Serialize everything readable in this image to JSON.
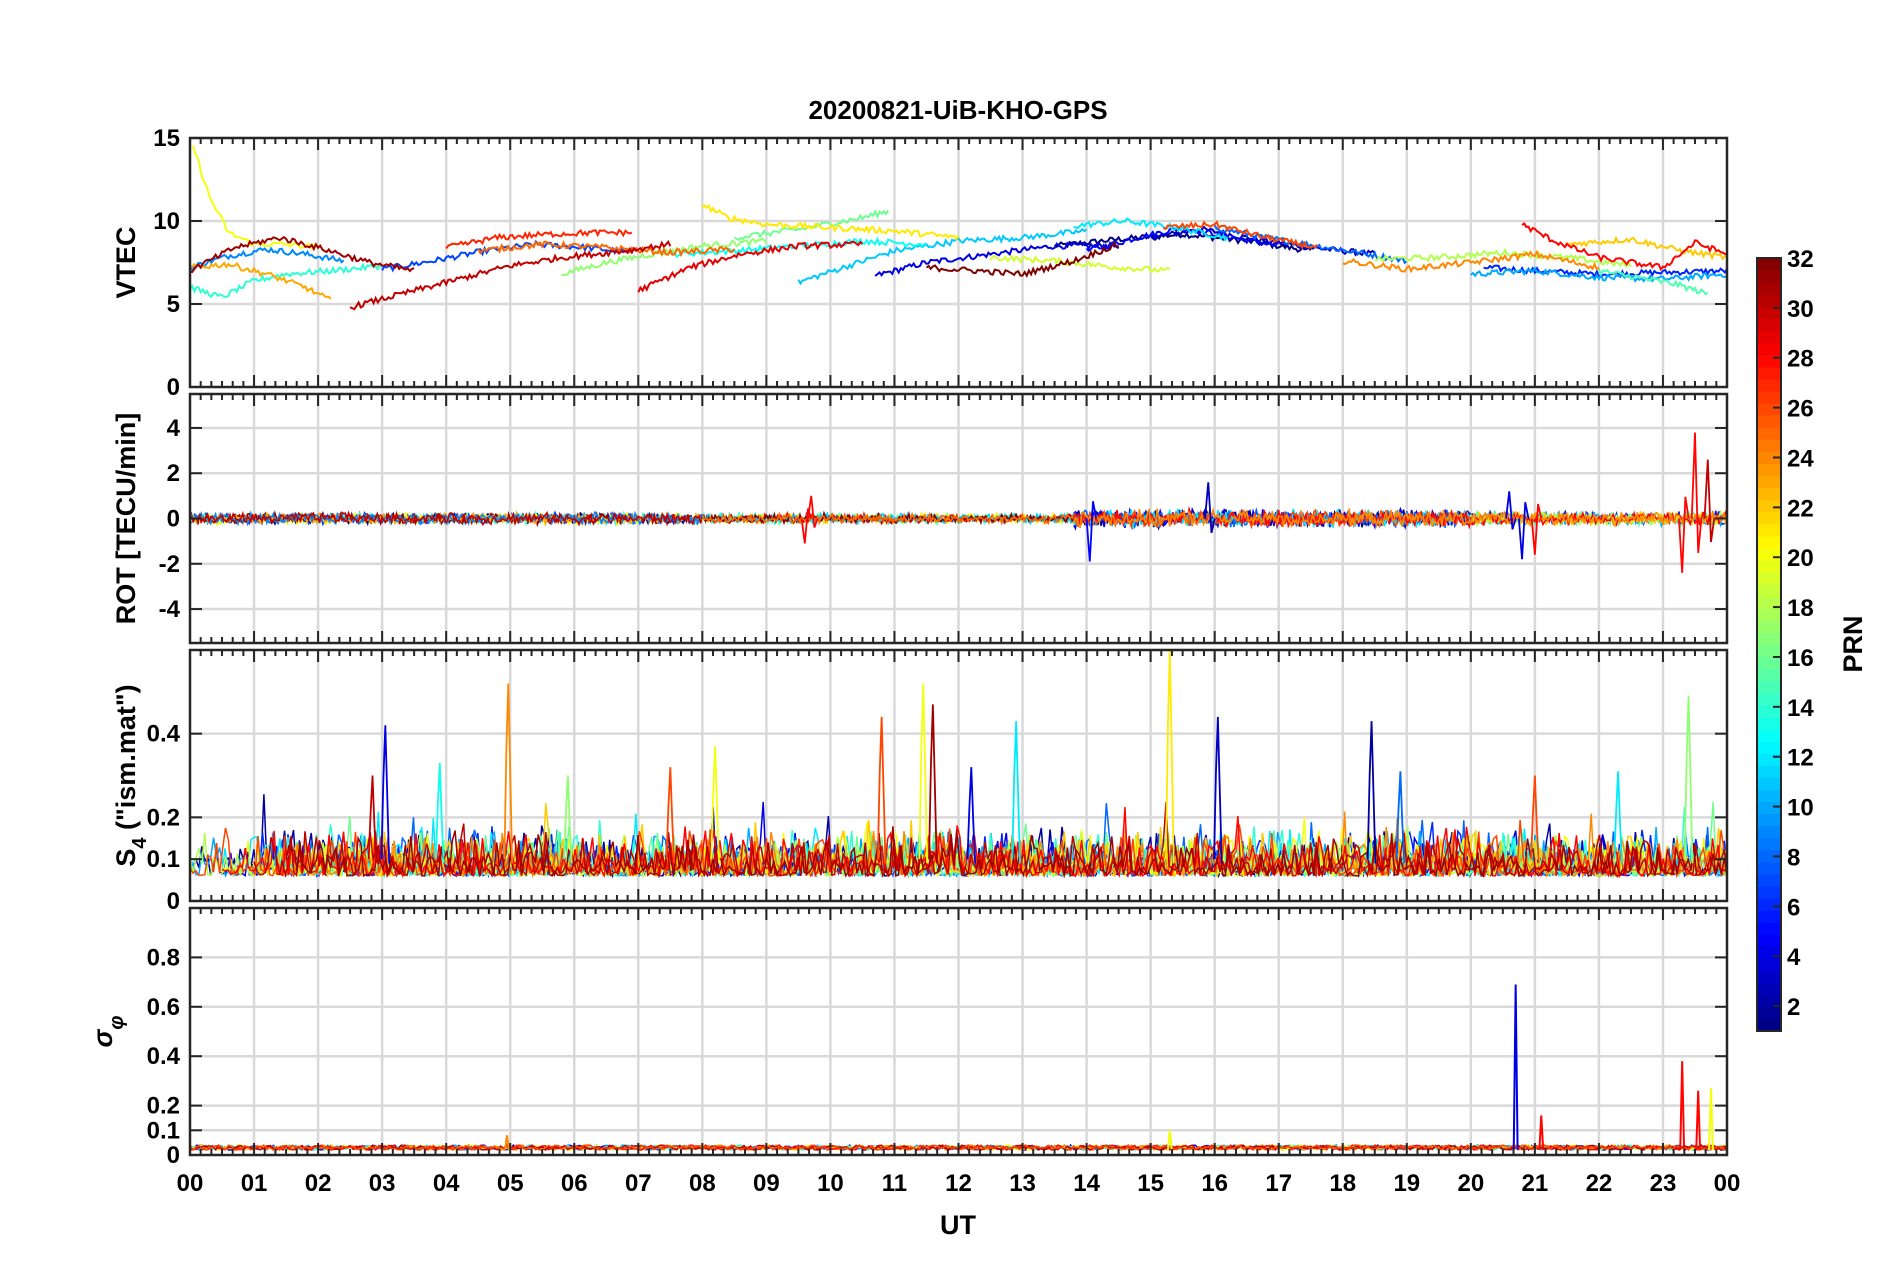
{
  "chart_data": {
    "type": "line",
    "title": "20200821-UiB-KHO-GPS",
    "xlabel": "UT",
    "x_ticks": [
      "00",
      "01",
      "02",
      "03",
      "04",
      "05",
      "06",
      "07",
      "08",
      "09",
      "10",
      "11",
      "12",
      "13",
      "14",
      "15",
      "16",
      "17",
      "18",
      "19",
      "20",
      "21",
      "22",
      "23",
      "00"
    ],
    "xlim": [
      0,
      24
    ],
    "grid": true,
    "panels": [
      {
        "id": "vtec",
        "ylabel": "VTEC",
        "ylim": [
          0,
          15
        ],
        "yticks": [
          0,
          5,
          10,
          15
        ],
        "ytick_labels": [
          "0",
          "5",
          "10",
          "15"
        ],
        "noise": 0.35,
        "series": [
          {
            "prn": 1,
            "x": [
              13.5,
              14.5,
              15.5,
              16.5,
              17.5
            ],
            "y": [
              8.5,
              8.9,
              9.2,
              8.8,
              8.2
            ]
          },
          {
            "prn": 3,
            "x": [
              15.0,
              15.8,
              16.5,
              17.5,
              18.5
            ],
            "y": [
              9.0,
              9.5,
              9.0,
              8.4,
              8.0
            ]
          },
          {
            "prn": 4,
            "x": [
              10.7,
              11.5,
              12.5,
              13.5,
              14.5
            ],
            "y": [
              6.7,
              7.5,
              8.0,
              8.5,
              8.5
            ]
          },
          {
            "prn": 5,
            "x": [
              14.0,
              14.8,
              15.5,
              16.3,
              17.0
            ],
            "y": [
              8.2,
              9.0,
              9.6,
              9.0,
              8.5
            ]
          },
          {
            "prn": 6,
            "x": [
              20.2,
              21.0,
              22.0,
              23.0,
              24.0
            ],
            "y": [
              7.2,
              7.0,
              6.8,
              6.9,
              7.0
            ]
          },
          {
            "prn": 7,
            "x": [
              3.0,
              3.8,
              4.6,
              5.4,
              6.2,
              6.9
            ],
            "y": [
              7.1,
              7.6,
              8.2,
              8.6,
              8.4,
              8.1
            ]
          },
          {
            "prn": 8,
            "x": [
              16.0,
              16.8,
              17.6,
              18.4,
              19.0
            ],
            "y": [
              9.6,
              9.0,
              8.5,
              8.0,
              7.6
            ]
          },
          {
            "prn": 9,
            "x": [
              0.0,
              0.6,
              1.2,
              1.8,
              2.4
            ],
            "y": [
              7.2,
              7.9,
              8.3,
              8.0,
              7.6
            ]
          },
          {
            "prn": 10,
            "x": [
              20.0,
              21.0,
              22.0,
              23.0,
              24.0
            ],
            "y": [
              6.8,
              7.0,
              6.6,
              6.5,
              6.8
            ]
          },
          {
            "prn": 11,
            "x": [
              9.5,
              10.2,
              11.0,
              12.0,
              13.0,
              14.0
            ],
            "y": [
              6.3,
              7.2,
              8.2,
              8.8,
              9.0,
              9.4
            ]
          },
          {
            "prn": 12,
            "x": [
              13.8,
              14.6,
              15.4,
              16.2
            ],
            "y": [
              9.7,
              10.0,
              9.6,
              9.0
            ]
          },
          {
            "prn": 13,
            "x": [
              7.5,
              8.5,
              9.5,
              10.5,
              11.5
            ],
            "y": [
              8.0,
              8.2,
              8.5,
              8.8,
              8.6
            ]
          },
          {
            "prn": 14,
            "x": [
              0.0,
              0.5,
              1.0,
              1.5,
              2.2,
              3.0
            ],
            "y": [
              6.0,
              5.4,
              6.4,
              6.8,
              7.0,
              7.3
            ]
          },
          {
            "prn": 15,
            "x": [
              22.0,
              22.6,
              23.2,
              23.7
            ],
            "y": [
              7.0,
              6.6,
              6.2,
              5.6
            ]
          },
          {
            "prn": 16,
            "x": [
              8.5,
              9.5,
              10.5,
              10.9
            ],
            "y": [
              9.0,
              9.5,
              10.2,
              10.6
            ]
          },
          {
            "prn": 17,
            "x": [
              5.8,
              6.5,
              7.2,
              8.0,
              9.0
            ],
            "y": [
              6.8,
              7.5,
              8.0,
              8.5,
              8.8
            ]
          },
          {
            "prn": 18,
            "x": [
              18.5,
              19.5,
              20.5,
              21.5,
              22.5
            ],
            "y": [
              7.7,
              7.8,
              8.1,
              7.8,
              7.3
            ]
          },
          {
            "prn": 19,
            "x": [
              12.5,
              13.5,
              14.5,
              15.3
            ],
            "y": [
              7.8,
              7.6,
              7.2,
              7.0
            ]
          },
          {
            "prn": 20,
            "x": [
              0.05,
              0.3,
              0.6,
              1.0,
              1.5,
              2.0
            ],
            "y": [
              14.5,
              11.5,
              9.3,
              8.6,
              8.6,
              8.4
            ]
          },
          {
            "prn": 21,
            "x": [
              8.0,
              8.4,
              9.0,
              10.0,
              11.0,
              12.0
            ],
            "y": [
              11.0,
              10.2,
              9.8,
              9.6,
              9.4,
              9.0
            ]
          },
          {
            "prn": 22,
            "x": [
              21.5,
              22.5,
              23.3,
              24.0
            ],
            "y": [
              8.6,
              8.9,
              8.2,
              7.8
            ]
          },
          {
            "prn": 23,
            "x": [
              0.0,
              0.6,
              1.2,
              1.8,
              2.2
            ],
            "y": [
              7.2,
              7.4,
              6.8,
              6.0,
              5.2
            ]
          },
          {
            "prn": 24,
            "x": [
              18.0,
              19.0,
              20.0,
              21.0,
              22.0
            ],
            "y": [
              7.6,
              7.1,
              7.5,
              8.0,
              7.2
            ]
          },
          {
            "prn": 25,
            "x": [
              4.5,
              5.5,
              6.5,
              7.5,
              8.5
            ],
            "y": [
              8.2,
              8.6,
              8.4,
              8.1,
              8.3
            ]
          },
          {
            "prn": 26,
            "x": [
              15.2,
              16.0,
              16.8,
              17.6
            ],
            "y": [
              9.6,
              9.8,
              9.0,
              8.4
            ]
          },
          {
            "prn": 27,
            "x": [
              4.0,
              4.8,
              5.6,
              6.3,
              6.9
            ],
            "y": [
              8.4,
              9.0,
              9.2,
              9.3,
              9.3
            ]
          },
          {
            "prn": 28,
            "x": [
              20.8,
              21.3,
              22.0,
              23.0,
              23.5,
              24.0
            ],
            "y": [
              9.8,
              8.8,
              7.8,
              7.2,
              8.7,
              8.0
            ]
          },
          {
            "prn": 29,
            "x": [
              7.0,
              7.8,
              8.6,
              9.5,
              10.5
            ],
            "y": [
              5.8,
              7.2,
              8.0,
              8.5,
              8.6
            ]
          },
          {
            "prn": 30,
            "x": [
              2.5,
              3.3,
              4.2,
              5.0,
              5.8,
              6.8,
              7.5
            ],
            "y": [
              4.8,
              5.6,
              6.5,
              7.3,
              7.8,
              8.2,
              8.6
            ]
          },
          {
            "prn": 31,
            "x": [
              0.0,
              0.7,
              1.4,
              2.1,
              2.8,
              3.5
            ],
            "y": [
              7.0,
              8.4,
              9.0,
              8.3,
              7.5,
              7.0
            ]
          },
          {
            "prn": 32,
            "x": [
              11.5,
              12.3,
              13.0,
              13.8,
              14.5
            ],
            "y": [
              7.2,
              7.0,
              6.8,
              7.6,
              8.6
            ]
          }
        ]
      },
      {
        "id": "rot",
        "ylabel": "ROT [TECU/min]",
        "ylim": [
          -5.5,
          5.5
        ],
        "yticks": [
          -4,
          -2,
          0,
          2,
          4
        ],
        "ytick_labels": [
          "-4",
          "-2",
          "0",
          "2",
          "4"
        ],
        "segments": [
          {
            "start": 0.0,
            "end": 8.0,
            "prns": [
              1,
              7,
              14,
              20,
              31,
              23,
              9,
              30
            ],
            "amp": 0.35
          },
          {
            "start": 8.0,
            "end": 14.0,
            "prns": [
              13,
              16,
              21,
              29,
              11,
              32,
              25
            ],
            "amp": 0.3
          },
          {
            "start": 13.8,
            "end": 20.0,
            "prns": [
              1,
              3,
              5,
              8,
              12,
              26,
              28,
              24
            ],
            "amp": 0.55
          },
          {
            "start": 20.0,
            "end": 24.0,
            "prns": [
              6,
              10,
              15,
              18,
              22,
              28,
              24
            ],
            "amp": 0.45
          }
        ],
        "spikes": [
          {
            "prn": 28,
            "x": 9.6,
            "y": -1.1
          },
          {
            "prn": 28,
            "x": 9.7,
            "y": 1.0
          },
          {
            "prn": 5,
            "x": 14.05,
            "y": -1.9
          },
          {
            "prn": 3,
            "x": 15.9,
            "y": 1.6
          },
          {
            "prn": 4,
            "x": 20.8,
            "y": -1.8
          },
          {
            "prn": 4,
            "x": 20.6,
            "y": 1.2
          },
          {
            "prn": 28,
            "x": 21.0,
            "y": -1.6
          },
          {
            "prn": 28,
            "x": 23.5,
            "y": 3.8
          },
          {
            "prn": 28,
            "x": 23.3,
            "y": -2.4
          },
          {
            "prn": 30,
            "x": 23.7,
            "y": 2.6
          }
        ]
      },
      {
        "id": "s4",
        "ylabel": "S4 (\"ism.mat\")",
        "ylim": [
          0,
          0.6
        ],
        "yticks": [
          0,
          0.1,
          0.2,
          0.4
        ],
        "ytick_labels": [
          "0",
          "0.1",
          "0.2",
          "0.4"
        ],
        "baseline": 0.07,
        "spikes": [
          {
            "prn": 4,
            "x": 3.05,
            "y": 0.42
          },
          {
            "prn": 30,
            "x": 2.85,
            "y": 0.3
          },
          {
            "prn": 24,
            "x": 4.97,
            "y": 0.52
          },
          {
            "prn": 13,
            "x": 3.9,
            "y": 0.33
          },
          {
            "prn": 17,
            "x": 5.9,
            "y": 0.3
          },
          {
            "prn": 26,
            "x": 7.5,
            "y": 0.32
          },
          {
            "prn": 20,
            "x": 8.2,
            "y": 0.37
          },
          {
            "prn": 26,
            "x": 10.8,
            "y": 0.44
          },
          {
            "prn": 20,
            "x": 11.45,
            "y": 0.52
          },
          {
            "prn": 31,
            "x": 11.6,
            "y": 0.47
          },
          {
            "prn": 12,
            "x": 12.9,
            "y": 0.43
          },
          {
            "prn": 4,
            "x": 12.2,
            "y": 0.32
          },
          {
            "prn": 21,
            "x": 15.3,
            "y": 0.6
          },
          {
            "prn": 3,
            "x": 16.05,
            "y": 0.44
          },
          {
            "prn": 2,
            "x": 18.45,
            "y": 0.43
          },
          {
            "prn": 8,
            "x": 18.9,
            "y": 0.31
          },
          {
            "prn": 26,
            "x": 21.0,
            "y": 0.3
          },
          {
            "prn": 17,
            "x": 23.4,
            "y": 0.49
          },
          {
            "prn": 12,
            "x": 22.3,
            "y": 0.31
          }
        ]
      },
      {
        "id": "sigma",
        "ylabel": "σφ",
        "ylim": [
          0,
          1.0
        ],
        "yticks": [
          0,
          0.1,
          0.2,
          0.4,
          0.6,
          0.8
        ],
        "ytick_labels": [
          "0",
          "0.1",
          "0.2",
          "0.4",
          "0.6",
          "0.8"
        ],
        "baseline": 0.02,
        "spikes": [
          {
            "prn": 4,
            "x": 20.7,
            "y": 0.69
          },
          {
            "prn": 28,
            "x": 23.3,
            "y": 0.38
          },
          {
            "prn": 28,
            "x": 23.55,
            "y": 0.26
          },
          {
            "prn": 28,
            "x": 21.1,
            "y": 0.16
          },
          {
            "prn": 20,
            "x": 23.75,
            "y": 0.27
          },
          {
            "prn": 24,
            "x": 4.95,
            "y": 0.08
          },
          {
            "prn": 20,
            "x": 15.3,
            "y": 0.1
          }
        ]
      }
    ],
    "colorbar": {
      "label": "PRN",
      "range": [
        1,
        32
      ],
      "ticks": [
        2,
        4,
        6,
        8,
        10,
        12,
        14,
        16,
        18,
        20,
        22,
        24,
        26,
        28,
        30,
        32
      ],
      "tick_labels": [
        "2",
        "4",
        "6",
        "8",
        "10",
        "12",
        "14",
        "16",
        "18",
        "20",
        "22",
        "24",
        "26",
        "28",
        "30",
        "32"
      ],
      "colormap": "jet"
    }
  }
}
